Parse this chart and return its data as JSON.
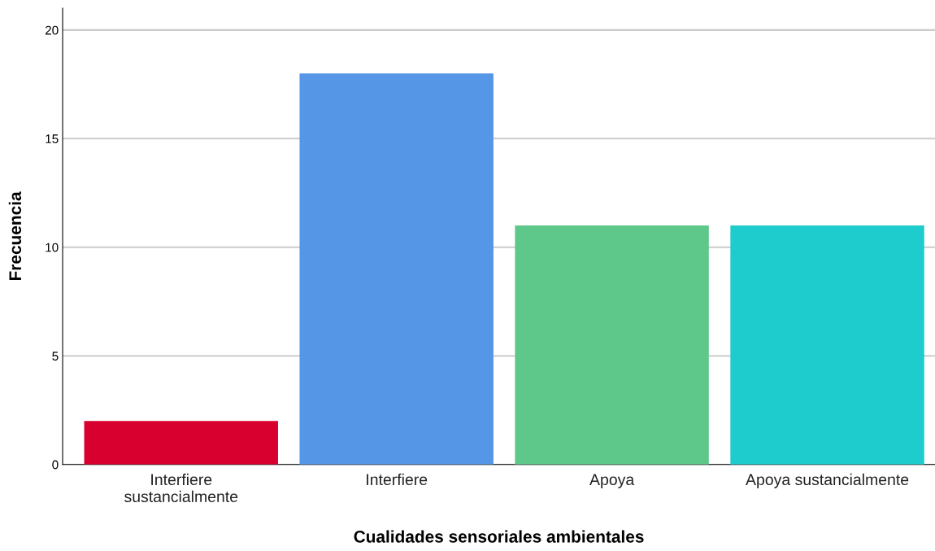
{
  "chart_data": {
    "type": "bar",
    "xlabel": "Cualidades sensoriales ambientales",
    "ylabel": "Frecuencia",
    "categories": [
      "Interfiere\nsustancialmente",
      "Interfiere",
      "Apoya",
      "Apoya sustancialmente"
    ],
    "values": [
      2,
      18,
      11,
      11
    ],
    "colors": [
      "#d7002e",
      "#5596e6",
      "#5ec88b",
      "#1ecbcd"
    ],
    "ylim": [
      0,
      21
    ],
    "yticks": [
      0,
      5,
      10,
      15,
      20
    ],
    "grid": "y"
  }
}
